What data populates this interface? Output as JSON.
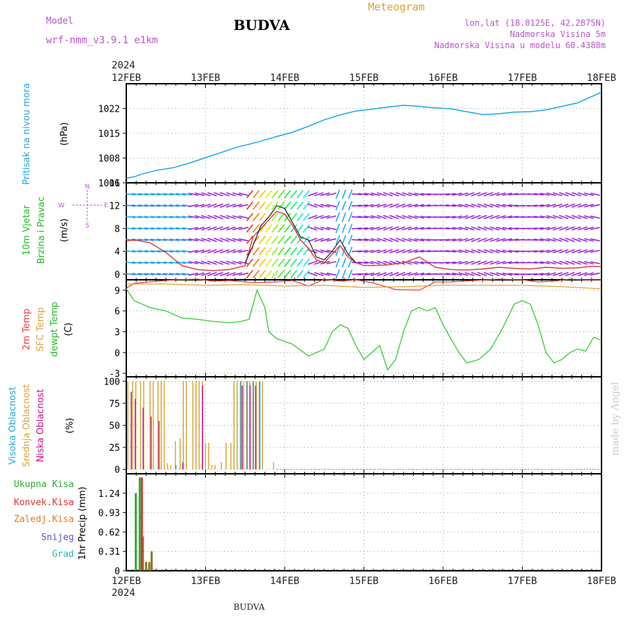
{
  "header": {
    "model_label": "Model",
    "model_name": "wrf-nmm_v3.9.1 e1km",
    "station": "BUDVA",
    "chart_title": "Meteogram",
    "location": "lon,lat (18.8125E, 42.2875N)",
    "elevation": "Nadmorska Visina 5m",
    "model_elevation": "Nadmorska Visina u modelu 60.4388m"
  },
  "footer": {
    "station": "BUDVA",
    "credit": "made by Angel"
  },
  "time_axis": {
    "year": "2024",
    "ticks": [
      "12FEB",
      "13FEB",
      "14FEB",
      "15FEB",
      "16FEB",
      "17FEB",
      "18FEB"
    ]
  },
  "colors": {
    "pressure": "#1aa6e8",
    "temp2m": "#e8403a",
    "sfc_temp": "#d9a538",
    "dewpt": "#33cc33",
    "cloud_high": "#22aadd",
    "cloud_mid": "#d9a538",
    "cloud_low": "#cc1188",
    "precip_total": "#33aa33",
    "precip_conv": "#dd3333",
    "precip_frozen": "#ee7722",
    "snow": "#5555dd",
    "hail": "#22bbbb",
    "purple_text": "#bb55cc",
    "wind_arrows": "#9a22dd",
    "wind_speed": "#dd3333",
    "gust": "#222222",
    "credit": "#cccccc"
  },
  "chart_data": [
    {
      "type": "line",
      "panel": "pressure",
      "ylabel_name": "Pritisak na nivou mora",
      "unit": "(hPa)",
      "ylim": [
        1001,
        1029
      ],
      "yticks": [
        1001,
        1008,
        1015,
        1022
      ],
      "ytick_labels": [
        "1001",
        "1008",
        "1015",
        "1022"
      ],
      "grid": true,
      "x_days": [
        0,
        0.1,
        0.2,
        0.4,
        0.6,
        0.8,
        1.0,
        1.2,
        1.4,
        1.5,
        1.7,
        1.9,
        2.1,
        2.3,
        2.5,
        2.7,
        2.9,
        3.1,
        3.3,
        3.5,
        3.7,
        3.9,
        4.1,
        4.3,
        4.5,
        4.7,
        4.9,
        5.1,
        5.3,
        5.5,
        5.7,
        5.9,
        6.0
      ],
      "values": [
        1002.3,
        1002.7,
        1003.5,
        1004.6,
        1005.3,
        1006.6,
        1008.1,
        1009.6,
        1011.1,
        1011.6,
        1012.8,
        1014.1,
        1015.3,
        1017.0,
        1018.8,
        1020.2,
        1021.3,
        1021.8,
        1022.4,
        1022.9,
        1022.6,
        1022.2,
        1021.9,
        1021.1,
        1020.3,
        1020.5,
        1021.0,
        1021.1,
        1021.6,
        1022.6,
        1023.6,
        1025.6,
        1026.6
      ]
    },
    {
      "type": "vector",
      "panel": "wind",
      "ylabel_name": "10m Vjetar",
      "ylabel_sub": "Brzina i Pravac",
      "unit": "(m/s)",
      "compass": {
        "n": "N",
        "e": "E",
        "w": "W",
        "s": "S"
      },
      "ylim": [
        -1,
        16
      ],
      "yticks": [
        0,
        4,
        8,
        12,
        16
      ],
      "ytick_labels": [
        "0",
        "4",
        "8",
        "12",
        "16"
      ],
      "grid": true,
      "series": [
        {
          "name": "speed",
          "x_days": [
            0,
            0.1,
            0.3,
            0.5,
            0.7,
            0.9,
            1.1,
            1.3,
            1.5,
            1.6,
            1.7,
            1.8,
            1.9,
            2.0,
            2.1,
            2.2,
            2.3,
            2.4,
            2.5,
            2.6,
            2.7,
            2.8,
            2.9,
            3.0,
            3.1,
            3.3,
            3.5,
            3.7,
            3.9,
            4.1,
            4.3,
            4.5,
            4.7,
            4.9,
            5.1,
            5.3,
            5.5,
            5.7,
            5.9,
            6.0
          ],
          "values": [
            5.8,
            6.0,
            5.5,
            3.8,
            1.5,
            0.8,
            0.6,
            0.8,
            1.5,
            6.5,
            8.0,
            9.5,
            11.0,
            10.5,
            8.5,
            6.0,
            4.5,
            2.5,
            2.0,
            3.5,
            5.0,
            3.0,
            2.0,
            1.5,
            1.5,
            1.6,
            2.0,
            3.0,
            1.2,
            0.8,
            0.7,
            0.9,
            1.2,
            1.0,
            0.9,
            1.2,
            1.0,
            1.1,
            1.4,
            1.3
          ]
        },
        {
          "name": "gust",
          "x_days": [
            1.5,
            1.6,
            1.7,
            1.8,
            1.9,
            2.0,
            2.1,
            2.2,
            2.3,
            2.4,
            2.5,
            2.6,
            2.7,
            2.8,
            2.9
          ],
          "values": [
            2.0,
            5.0,
            8.5,
            10.0,
            12.0,
            11.5,
            9.0,
            6.5,
            6.0,
            3.0,
            2.5,
            4.0,
            6.0,
            3.5,
            2.0
          ]
        }
      ]
    },
    {
      "type": "line",
      "panel": "temperature",
      "ylabel_lines": [
        "2m Temp",
        "SFC Temp",
        "dewpt Temp"
      ],
      "unit": "(C)",
      "ylim": [
        -3.5,
        10.5
      ],
      "yticks": [
        -3,
        0,
        3,
        6,
        9
      ],
      "ytick_labels": [
        "-3",
        "0",
        "3",
        "6",
        "9"
      ],
      "grid": true,
      "series": [
        {
          "name": "2m Temp",
          "x_days": [
            0,
            0.1,
            0.3,
            0.6,
            0.9,
            1.1,
            1.3,
            1.6,
            1.9,
            2.1,
            2.3,
            2.5,
            2.7,
            2.9,
            3.1,
            3.4,
            3.7,
            3.9,
            4.1,
            4.4,
            4.7,
            5.0,
            5.2,
            5.4,
            5.6,
            5.8,
            6.0
          ],
          "values": [
            9.3,
            10.0,
            10.2,
            10.5,
            10.6,
            10.3,
            10.4,
            10.1,
            10.2,
            10.4,
            9.6,
            10.6,
            10.3,
            10.5,
            10.1,
            9.1,
            9.0,
            10.2,
            10.2,
            10.4,
            10.6,
            10.5,
            10.2,
            10.3,
            10.6,
            10.5,
            10.5
          ]
        },
        {
          "name": "SFC Temp",
          "x_days": [
            0,
            0.5,
            1.0,
            1.5,
            2.0,
            2.5,
            3.0,
            3.5,
            4.0,
            4.5,
            5.0,
            5.5,
            6.0
          ],
          "values": [
            9.9,
            9.9,
            9.7,
            9.8,
            9.6,
            9.7,
            9.4,
            9.5,
            9.7,
            9.7,
            9.7,
            9.5,
            9.2
          ]
        },
        {
          "name": "dewpt Temp",
          "x_days": [
            0,
            0.1,
            0.2,
            0.3,
            0.5,
            0.7,
            0.9,
            1.1,
            1.3,
            1.45,
            1.55,
            1.65,
            1.75,
            1.8,
            1.9,
            2.1,
            2.3,
            2.5,
            2.6,
            2.7,
            2.8,
            2.9,
            3.0,
            3.1,
            3.2,
            3.3,
            3.4,
            3.5,
            3.6,
            3.7,
            3.8,
            3.9,
            4.0,
            4.1,
            4.2,
            4.3,
            4.45,
            4.6,
            4.75,
            4.9,
            5.0,
            5.1,
            5.2,
            5.3,
            5.4,
            5.5,
            5.6,
            5.7,
            5.8,
            5.9,
            6.0
          ],
          "values": [
            9.2,
            7.5,
            7.0,
            6.5,
            6.0,
            5.0,
            4.8,
            4.5,
            4.3,
            4.5,
            4.8,
            9.0,
            6.5,
            3.0,
            2.0,
            1.2,
            -0.5,
            0.5,
            3.0,
            4.0,
            3.5,
            1.0,
            -1.0,
            0.0,
            1.0,
            -2.5,
            -1.0,
            3.0,
            6.0,
            6.5,
            6.0,
            6.5,
            4.0,
            2.0,
            0.0,
            -1.5,
            -1.0,
            0.5,
            3.5,
            7.0,
            7.5,
            7.0,
            4.0,
            0.0,
            -1.5,
            -1.0,
            0.0,
            0.5,
            0.2,
            2.2,
            1.8
          ]
        }
      ]
    },
    {
      "type": "bar",
      "panel": "clouds",
      "ylabel_lines": [
        "Visoka Oblacnost",
        "Srednja Oblacnost",
        "Niska Oblacnost"
      ],
      "unit": "(%)",
      "ylim": [
        -5,
        105
      ],
      "yticks": [
        0,
        25,
        50,
        75,
        100
      ],
      "ytick_labels": [
        "0",
        "25",
        "50",
        "75",
        "100"
      ],
      "grid": true,
      "series": [
        {
          "name": "Srednja Oblacnost",
          "x_days": [
            0.02,
            0.08,
            0.12,
            0.18,
            0.22,
            0.3,
            0.34,
            0.4,
            0.44,
            0.48,
            0.52,
            0.56,
            0.62,
            0.68,
            0.72,
            0.76,
            0.84,
            0.88,
            0.92,
            0.96,
            1.0,
            1.04,
            1.08,
            1.12,
            1.2,
            1.26,
            1.32,
            1.36,
            1.4,
            1.44,
            1.48,
            1.52,
            1.56,
            1.6,
            1.64,
            1.68,
            1.72,
            1.86
          ],
          "values": [
            100,
            100,
            100,
            100,
            100,
            100,
            100,
            100,
            100,
            100,
            7,
            5,
            32,
            35,
            100,
            100,
            100,
            100,
            100,
            100,
            30,
            30,
            5,
            5,
            8,
            30,
            30,
            100,
            100,
            100,
            100,
            100,
            100,
            100,
            100,
            100,
            100,
            8
          ]
        },
        {
          "name": "Niska Oblacnost",
          "x_days": [
            0.05,
            0.1,
            0.2,
            0.3,
            0.4,
            0.7,
            0.95,
            1.45,
            1.55,
            1.62
          ],
          "values": [
            88,
            80,
            70,
            60,
            55,
            8,
            95,
            95,
            95,
            95
          ]
        },
        {
          "name": "Visoka Oblacnost",
          "x_days": [
            0.6,
            1.42,
            1.5,
            1.58,
            1.66
          ],
          "values": [
            5,
            100,
            100,
            100,
            100
          ]
        }
      ]
    },
    {
      "type": "bar",
      "panel": "precip",
      "legend": [
        "Ukupna Kisa",
        "Konvek.Kisa",
        "Zaledj.Kisa",
        "Snijeg",
        "Grad"
      ],
      "ylabel": "1hr Precip (mm)",
      "ylim": [
        0,
        1.55
      ],
      "yticks": [
        0,
        0.31,
        0.62,
        0.93,
        1.24
      ],
      "ytick_labels": [
        "0",
        "0.31",
        "0.62",
        "0.93",
        "1.24"
      ],
      "grid": true,
      "series": [
        {
          "name": "Ukupna Kisa",
          "x_days": [
            0.12,
            0.17,
            0.21,
            0.25,
            0.29,
            0.32
          ],
          "values": [
            1.24,
            1.49,
            0.55,
            0.14,
            0.14,
            0.31
          ]
        },
        {
          "name": "Konvek.Kisa",
          "x_days": [
            0.17
          ],
          "values": [
            1.49
          ]
        }
      ]
    }
  ]
}
